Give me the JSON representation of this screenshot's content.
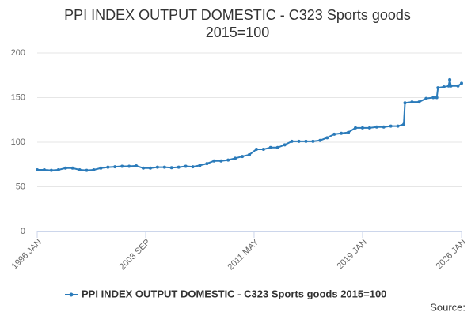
{
  "chart_data": {
    "type": "line",
    "title": "PPI INDEX OUTPUT DOMESTIC - C323 Sports goods 2015=100",
    "source_label": "Source:",
    "xlim": [
      "1996 JAN",
      "2026 JAN"
    ],
    "xticks": [
      "1996 JAN",
      "2003 SEP",
      "2011 MAY",
      "2019 JAN",
      "2026 JAN"
    ],
    "ylim": [
      0,
      200
    ],
    "yticks": [
      0,
      50,
      100,
      150,
      200
    ],
    "grid": true,
    "x": [
      "1996 JAN",
      "1996 JUL",
      "1997 JAN",
      "1997 JUL",
      "1998 JAN",
      "1998 JUL",
      "1999 JAN",
      "1999 JUL",
      "2000 JAN",
      "2000 JUL",
      "2001 JAN",
      "2001 JUL",
      "2002 JAN",
      "2002 JUL",
      "2003 JAN",
      "2003 JUL",
      "2004 JAN",
      "2004 JUL",
      "2005 JAN",
      "2005 JUL",
      "2006 JAN",
      "2006 JUL",
      "2007 JAN",
      "2007 JUL",
      "2008 JAN",
      "2008 JUL",
      "2009 JAN",
      "2009 JUL",
      "2010 JAN",
      "2010 JUL",
      "2011 JAN",
      "2011 JUL",
      "2012 JAN",
      "2012 JUL",
      "2013 JAN",
      "2013 JUL",
      "2014 JAN",
      "2014 JUL",
      "2015 JAN",
      "2015 JUL",
      "2016 JAN",
      "2016 JUL",
      "2017 JAN",
      "2017 JUL",
      "2018 JAN",
      "2018 JUL",
      "2019 JAN",
      "2019 JUL",
      "2020 JAN",
      "2020 JUL",
      "2021 JAN",
      "2021 JUL",
      "2021 DEC",
      "2022 JAN",
      "2022 JUL",
      "2023 JAN",
      "2023 JUL",
      "2024 JAN",
      "2024 APR",
      "2024 MAY",
      "2024 OCT",
      "2025 FEB",
      "2025 MAR",
      "2025 APR",
      "2025 OCT",
      "2026 JAN"
    ],
    "series": [
      {
        "name": "PPI INDEX OUTPUT DOMESTIC - C323 Sports goods 2015=100",
        "color": "#2b7bba",
        "values": [
          69,
          69,
          68.5,
          69,
          71,
          71,
          69,
          68.5,
          69,
          71,
          72,
          72.5,
          73,
          73,
          73.5,
          71,
          71,
          72,
          72,
          71.5,
          72,
          73,
          72.5,
          74,
          76,
          79,
          79,
          80,
          82,
          84,
          86,
          92,
          92,
          94,
          94,
          97,
          101,
          101,
          101,
          101,
          102,
          105,
          109,
          110,
          111,
          116,
          116,
          116,
          117,
          117,
          118,
          118,
          120,
          144,
          145,
          145,
          149,
          150,
          150,
          161,
          162,
          163,
          170,
          163,
          163,
          166
        ]
      }
    ]
  }
}
